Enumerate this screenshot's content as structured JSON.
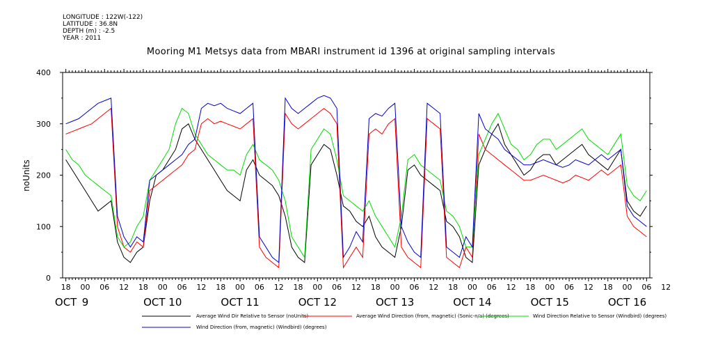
{
  "header": {
    "longitude": "LONGITUDE : 122W(-122)",
    "latitude": "LATITUDE : 36.8N",
    "depth": "DEPTH (m) : -2.5",
    "year": "YEAR : 2011"
  },
  "chart_data": {
    "type": "line",
    "title": "Mooring M1 Metsys data from MBARI instrument id 1396 at original sampling intervals",
    "ylabel": "noUnits",
    "ylim": [
      0,
      400
    ],
    "yticks": [
      0,
      100,
      200,
      300,
      400
    ],
    "xlim_hours": [
      -7,
      136
    ],
    "xtick_hour_labels": [
      "18",
      "00",
      "06",
      "12",
      "18",
      "00",
      "06",
      "12",
      "18",
      "00",
      "06",
      "12",
      "18",
      "00",
      "06",
      "12",
      "18",
      "00",
      "06",
      "12",
      "18",
      "00",
      "06",
      "12",
      "18",
      "00",
      "06",
      "12",
      "18",
      "00",
      "06",
      "12"
    ],
    "day_labels": [
      {
        "text": "OCT",
        "hour": -6
      },
      {
        "text": "9",
        "hour": 0
      },
      {
        "text": "OCT 10",
        "hour": 24
      },
      {
        "text": "OCT 11",
        "hour": 48
      },
      {
        "text": "OCT 12",
        "hour": 72
      },
      {
        "text": "OCT 13",
        "hour": 96
      },
      {
        "text": "OCT 14",
        "hour": 120
      },
      {
        "text": "OCT 15",
        "hour": 144
      },
      {
        "text": "OCT 16",
        "hour": 168
      }
    ],
    "series": [
      {
        "name": "Average Wind Dir Relative to Sensor (noUnits)",
        "color": "#000000",
        "x": [
          -6,
          -4,
          -2,
          0,
          2,
          4,
          6,
          8,
          10,
          12,
          14,
          16,
          18,
          20,
          22,
          24,
          26,
          28,
          30,
          32,
          34,
          36,
          38,
          40,
          42,
          44,
          46,
          48,
          50,
          52,
          54,
          56,
          58,
          60,
          62,
          64,
          66,
          68,
          70,
          72,
          74,
          76,
          78,
          80,
          82,
          84,
          86,
          88,
          90,
          92,
          94,
          96,
          98,
          100,
          102,
          104,
          106,
          108,
          110,
          112,
          114,
          116,
          118,
          120,
          122,
          124,
          126,
          128,
          130,
          132,
          134,
          136,
          138,
          140,
          142,
          144,
          146,
          148,
          150,
          152,
          154,
          156,
          158,
          160,
          162,
          164,
          166,
          168,
          170,
          172,
          174
        ],
        "y": [
          230,
          210,
          190,
          170,
          150,
          130,
          140,
          150,
          70,
          40,
          30,
          50,
          60,
          150,
          200,
          210,
          230,
          250,
          290,
          300,
          270,
          250,
          230,
          210,
          190,
          170,
          160,
          150,
          210,
          230,
          200,
          190,
          180,
          160,
          120,
          60,
          40,
          30,
          220,
          240,
          260,
          250,
          200,
          140,
          130,
          110,
          100,
          120,
          80,
          60,
          50,
          40,
          100,
          210,
          220,
          200,
          190,
          180,
          170,
          110,
          100,
          80,
          40,
          30,
          220,
          250,
          280,
          300,
          260,
          240,
          220,
          200,
          210,
          230,
          240,
          240,
          220,
          230,
          240,
          250,
          260,
          240,
          230,
          220,
          210,
          230,
          250,
          150,
          130,
          120,
          140
        ]
      },
      {
        "name": "Average Wind Direction (from, magnetic) (Sonic-n/a) (degrees)",
        "color": "#ff0000",
        "x": [
          -6,
          -4,
          -2,
          0,
          2,
          4,
          6,
          8,
          10,
          12,
          14,
          16,
          18,
          20,
          22,
          24,
          26,
          28,
          30,
          32,
          34,
          36,
          38,
          40,
          42,
          44,
          46,
          48,
          50,
          52,
          54,
          56,
          58,
          60,
          62,
          64,
          66,
          68,
          70,
          72,
          74,
          76,
          78,
          80,
          82,
          84,
          86,
          88,
          90,
          92,
          94,
          96,
          98,
          100,
          102,
          104,
          106,
          108,
          110,
          112,
          114,
          116,
          118,
          120,
          122,
          124,
          126,
          128,
          130,
          132,
          134,
          136,
          138,
          140,
          142,
          144,
          146,
          148,
          150,
          152,
          154,
          156,
          158,
          160,
          162,
          164,
          166,
          168,
          170,
          172,
          174
        ],
        "y": [
          280,
          285,
          290,
          295,
          300,
          310,
          320,
          330,
          100,
          60,
          50,
          70,
          60,
          170,
          180,
          190,
          200,
          210,
          220,
          240,
          250,
          300,
          310,
          300,
          305,
          300,
          295,
          290,
          300,
          310,
          60,
          40,
          30,
          20,
          320,
          300,
          290,
          300,
          310,
          320,
          330,
          320,
          300,
          20,
          40,
          60,
          40,
          280,
          290,
          280,
          300,
          310,
          60,
          40,
          30,
          20,
          310,
          300,
          290,
          40,
          30,
          20,
          60,
          40,
          280,
          250,
          240,
          230,
          220,
          210,
          200,
          190,
          190,
          195,
          200,
          195,
          190,
          185,
          190,
          200,
          195,
          190,
          200,
          210,
          200,
          210,
          220,
          120,
          100,
          90,
          80
        ]
      },
      {
        "name": "Wind Direction Relative to Sensor (Windbird) (degrees)",
        "color": "#00dd00",
        "x": [
          -6,
          -4,
          -2,
          0,
          2,
          4,
          6,
          8,
          10,
          12,
          14,
          16,
          18,
          20,
          22,
          24,
          26,
          28,
          30,
          32,
          34,
          36,
          38,
          40,
          42,
          44,
          46,
          48,
          50,
          52,
          54,
          56,
          58,
          60,
          62,
          64,
          66,
          68,
          70,
          72,
          74,
          76,
          78,
          80,
          82,
          84,
          86,
          88,
          90,
          92,
          94,
          96,
          98,
          100,
          102,
          104,
          106,
          108,
          110,
          112,
          114,
          116,
          118,
          120,
          122,
          124,
          126,
          128,
          130,
          132,
          134,
          136,
          138,
          140,
          142,
          144,
          146,
          148,
          150,
          152,
          154,
          156,
          158,
          160,
          162,
          164,
          166,
          168,
          170,
          172,
          174
        ],
        "y": [
          250,
          230,
          220,
          200,
          190,
          180,
          170,
          160,
          80,
          60,
          70,
          100,
          120,
          190,
          210,
          230,
          250,
          300,
          330,
          320,
          280,
          260,
          240,
          230,
          220,
          210,
          210,
          200,
          240,
          260,
          230,
          220,
          210,
          190,
          150,
          80,
          60,
          40,
          250,
          270,
          290,
          280,
          230,
          160,
          150,
          140,
          130,
          150,
          120,
          100,
          80,
          60,
          120,
          230,
          240,
          220,
          210,
          200,
          190,
          130,
          120,
          100,
          60,
          60,
          240,
          270,
          300,
          320,
          290,
          260,
          250,
          230,
          240,
          260,
          270,
          270,
          250,
          260,
          270,
          280,
          290,
          270,
          260,
          250,
          240,
          260,
          280,
          180,
          160,
          150,
          170
        ]
      },
      {
        "name": "Wind Direction (from, magnetic) (Windbird) (degrees)",
        "color": "#0000cc",
        "x": [
          -6,
          -4,
          -2,
          0,
          2,
          4,
          6,
          8,
          10,
          12,
          14,
          16,
          18,
          20,
          22,
          24,
          26,
          28,
          30,
          32,
          34,
          36,
          38,
          40,
          42,
          44,
          46,
          48,
          50,
          52,
          54,
          56,
          58,
          60,
          62,
          64,
          66,
          68,
          70,
          72,
          74,
          76,
          78,
          80,
          82,
          84,
          86,
          88,
          90,
          92,
          94,
          96,
          98,
          100,
          102,
          104,
          106,
          108,
          110,
          112,
          114,
          116,
          118,
          120,
          122,
          124,
          126,
          128,
          130,
          132,
          134,
          136,
          138,
          140,
          142,
          144,
          146,
          148,
          150,
          152,
          154,
          156,
          158,
          160,
          162,
          164,
          166,
          168,
          170,
          172,
          174
        ],
        "y": [
          300,
          305,
          310,
          320,
          330,
          340,
          345,
          350,
          120,
          80,
          60,
          80,
          70,
          190,
          200,
          210,
          220,
          230,
          240,
          260,
          270,
          330,
          340,
          335,
          340,
          330,
          325,
          320,
          330,
          340,
          80,
          60,
          40,
          30,
          350,
          330,
          320,
          330,
          340,
          350,
          355,
          350,
          330,
          40,
          60,
          90,
          70,
          310,
          320,
          315,
          330,
          340,
          100,
          70,
          50,
          40,
          340,
          330,
          320,
          60,
          50,
          40,
          80,
          60,
          320,
          290,
          280,
          270,
          250,
          240,
          230,
          220,
          220,
          225,
          230,
          225,
          220,
          215,
          220,
          230,
          225,
          220,
          230,
          240,
          230,
          240,
          250,
          140,
          120,
          110,
          100
        ]
      }
    ],
    "legend_placement": "bottom",
    "grid": false
  },
  "legend": [
    {
      "label": "Average Wind Dir Relative to Sensor (noUnits)",
      "color": "#000000"
    },
    {
      "label": "Average Wind Direction (from, magnetic) (Sonic-n/a) (degrees)",
      "color": "#ff0000"
    },
    {
      "label": "Wind Direction Relative to Sensor (Windbird) (degrees)",
      "color": "#00dd00"
    },
    {
      "label": "Wind Direction (from, magnetic) (Windbird) (degrees)",
      "color": "#0000cc"
    }
  ]
}
